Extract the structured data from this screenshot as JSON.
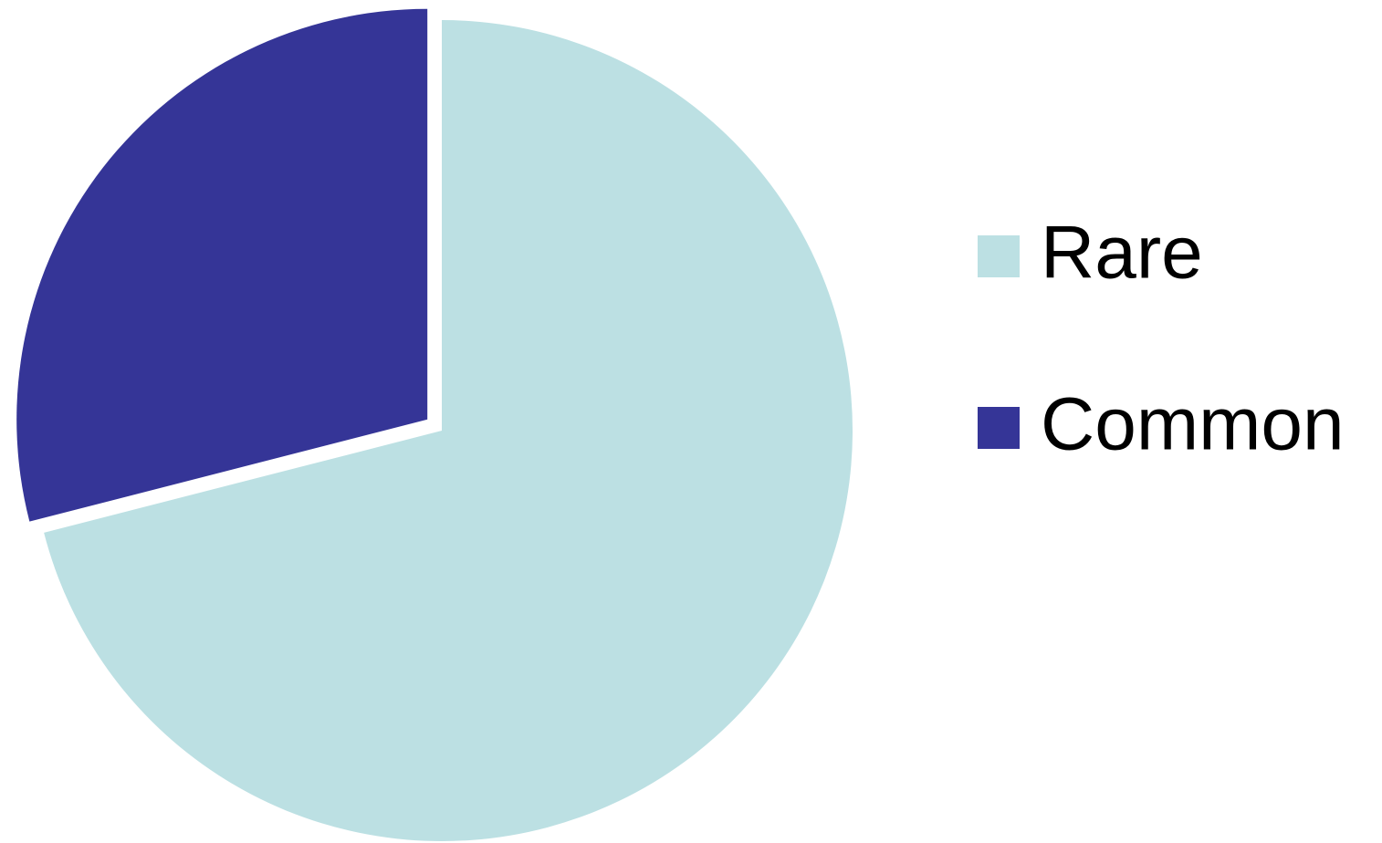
{
  "chart_data": {
    "type": "pie",
    "categories": [
      "Rare",
      "Common"
    ],
    "values": [
      71,
      29
    ],
    "colors": [
      "#bce0e3",
      "#353597"
    ],
    "exploded": [
      false,
      true
    ],
    "legend": "right"
  }
}
